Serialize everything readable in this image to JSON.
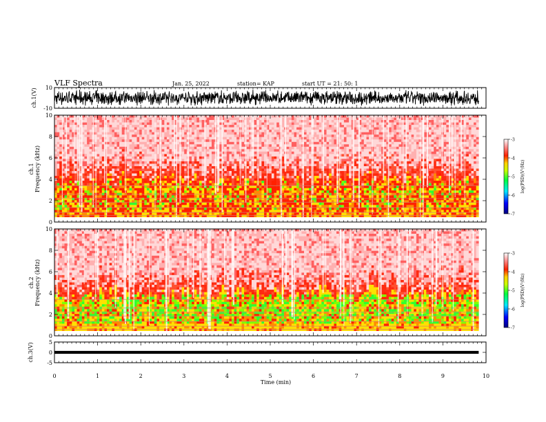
{
  "header": {
    "title": "VLF Spectra",
    "date": "Jan. 25, 2022",
    "station": "station= KAP",
    "start": "start  UT  =   21: 50: 1"
  },
  "chart_data": [
    {
      "id": "ch1-waveform",
      "type": "line",
      "ylabel": "ch.1(V)",
      "ylim": [
        -10,
        10
      ],
      "yticks": [
        {
          "v": 10,
          "label": "10"
        },
        {
          "v": -10,
          "label": "-10"
        }
      ],
      "xlim": [
        0,
        10
      ],
      "data_end": 9.83,
      "description_color": "#000000"
    },
    {
      "id": "ch1-spectrogram",
      "type": "heatmap",
      "ylabel": "Frequency  (kHz)",
      "channel_label": "ch.1",
      "ylim": [
        0,
        10
      ],
      "yticks": [
        {
          "v": 0,
          "label": "0"
        },
        {
          "v": 2,
          "label": "2"
        },
        {
          "v": 4,
          "label": "4"
        },
        {
          "v": 6,
          "label": "6"
        },
        {
          "v": 8,
          "label": "8"
        },
        {
          "v": 10,
          "label": "10"
        }
      ],
      "xlim": [
        0,
        10
      ],
      "data_end": 9.83,
      "colorbar": {
        "label": "log(PSD)(V²/Hz)",
        "range": [
          -7,
          -3
        ],
        "ticks": [
          {
            "v": -3,
            "label": "-3"
          },
          {
            "v": -4,
            "label": "-4"
          },
          {
            "v": -5,
            "label": "-5"
          },
          {
            "v": -6,
            "label": "-6"
          },
          {
            "v": -7,
            "label": "-7"
          }
        ]
      }
    },
    {
      "id": "ch2-spectrogram",
      "type": "heatmap",
      "ylabel": "Frequency  (kHz)",
      "channel_label": "ch.2",
      "ylim": [
        0,
        10
      ],
      "yticks": [
        {
          "v": 0,
          "label": "0"
        },
        {
          "v": 2,
          "label": "2"
        },
        {
          "v": 4,
          "label": "4"
        },
        {
          "v": 6,
          "label": "6"
        },
        {
          "v": 8,
          "label": "8"
        },
        {
          "v": 10,
          "label": "10"
        }
      ],
      "xlim": [
        0,
        10
      ],
      "data_end": 9.83,
      "colorbar": {
        "label": "log(PSD)(V²/Hz)",
        "range": [
          -7,
          -3
        ],
        "ticks": [
          {
            "v": -3,
            "label": "-3"
          },
          {
            "v": -4,
            "label": "-4"
          },
          {
            "v": -5,
            "label": "-5"
          },
          {
            "v": -6,
            "label": "-6"
          },
          {
            "v": -7,
            "label": "-7"
          }
        ]
      }
    },
    {
      "id": "ch3-waveform",
      "type": "line",
      "ylabel": "ch.3(V)",
      "ylim": [
        -5,
        5
      ],
      "yticks": [
        {
          "v": 5,
          "label": "5"
        },
        {
          "v": 0,
          "label": "0"
        },
        {
          "v": -5,
          "label": "-5"
        }
      ],
      "xlim": [
        0,
        10
      ],
      "data_end": 9.83,
      "xticks": [
        {
          "v": 0,
          "label": "0"
        },
        {
          "v": 1,
          "label": "1"
        },
        {
          "v": 2,
          "label": "2"
        },
        {
          "v": 3,
          "label": "3"
        },
        {
          "v": 4,
          "label": "4"
        },
        {
          "v": 5,
          "label": "5"
        },
        {
          "v": 6,
          "label": "6"
        },
        {
          "v": 7,
          "label": "7"
        },
        {
          "v": 8,
          "label": "8"
        },
        {
          "v": 9,
          "label": "9"
        },
        {
          "v": 10,
          "label": "10"
        }
      ],
      "xlabel": "Time  (min)"
    }
  ]
}
